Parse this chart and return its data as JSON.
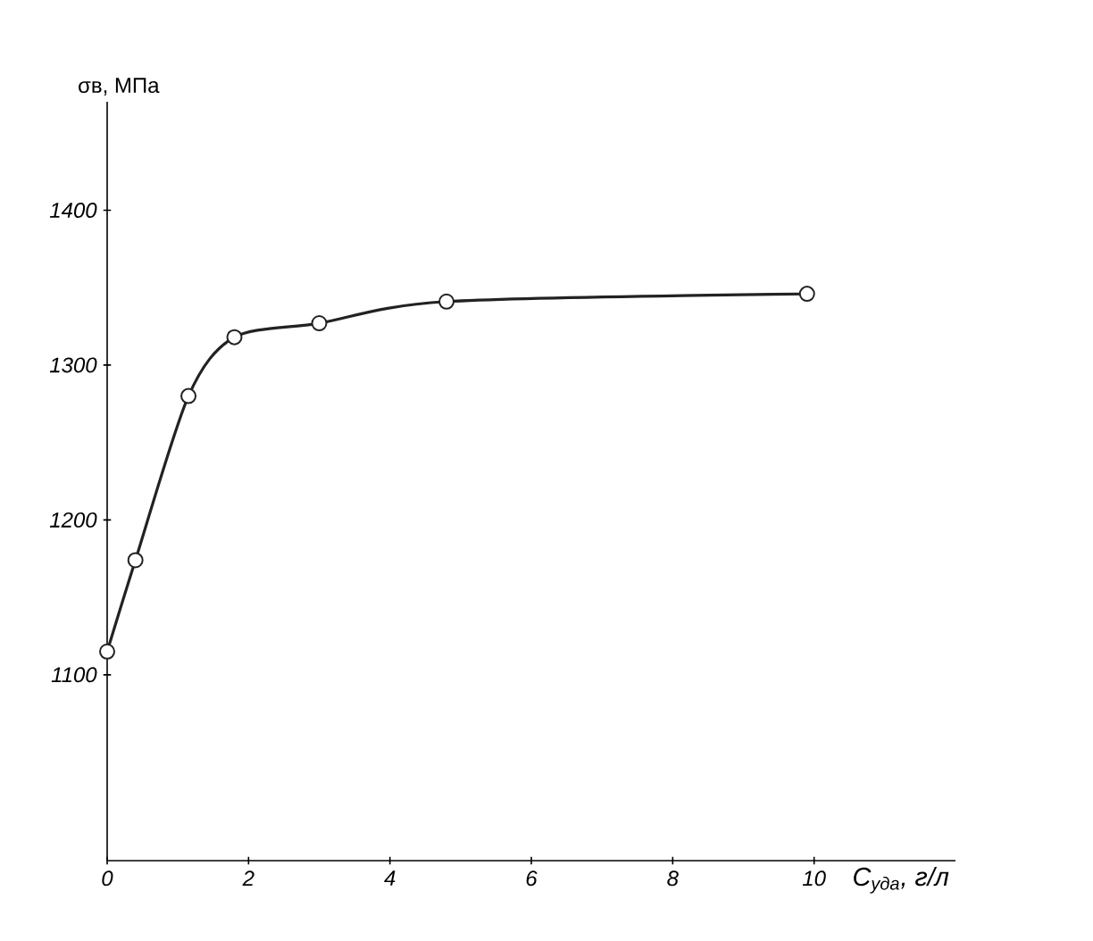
{
  "chart_data": {
    "type": "line",
    "xlabel": "C$_{уда}$, г/л",
    "ylabel": "σв, МПа",
    "x": [
      0,
      0.4,
      1.15,
      1.8,
      3.0,
      4.8,
      9.9
    ],
    "series": [
      {
        "color": "#222222",
        "values": [
          1115,
          1174,
          1280,
          1318,
          1327,
          1341,
          1346
        ]
      }
    ],
    "xlim": [
      0,
      12
    ],
    "ylim": [
      980,
      1470
    ],
    "xticks": [
      0,
      2,
      4,
      6,
      8,
      10
    ],
    "yticks": [
      1100,
      1200,
      1300,
      1400
    ],
    "marker": "circle",
    "line_style": "solid"
  }
}
